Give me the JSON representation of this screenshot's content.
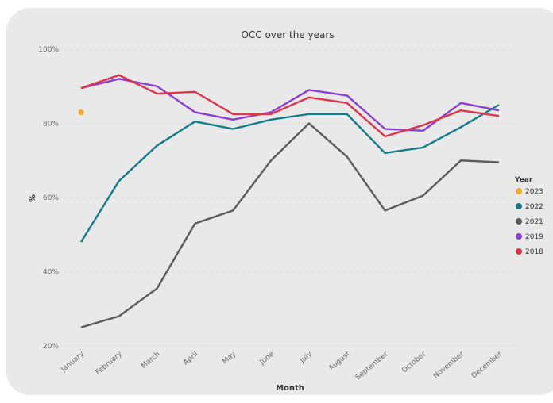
{
  "chart_data": {
    "type": "line",
    "title": "OCC over the years",
    "xlabel": "Month",
    "ylabel": "%",
    "categories": [
      "January",
      "February",
      "March",
      "April",
      "May",
      "June",
      "July",
      "August",
      "September",
      "October",
      "November",
      "December"
    ],
    "y_ticks": [
      "100%",
      "80%",
      "60%",
      "40%",
      "20%"
    ],
    "ylim": [
      20,
      100
    ],
    "grid": "horizontal dotted",
    "legend": {
      "title": "Year",
      "placement": "right"
    },
    "series": [
      {
        "name": "2023",
        "color": "#f5a623",
        "marker": "point",
        "values": [
          83,
          null,
          null,
          null,
          null,
          null,
          null,
          null,
          null,
          null,
          null,
          null
        ]
      },
      {
        "name": "2022",
        "color": "#127c8c",
        "values": [
          48,
          64.5,
          74,
          80.5,
          78.5,
          81,
          82.5,
          82.5,
          72,
          73.5,
          79,
          85
        ]
      },
      {
        "name": "2021",
        "color": "#5b5b5b",
        "values": [
          25,
          28,
          35.5,
          53,
          56.5,
          70,
          80,
          71,
          56.5,
          60.5,
          70,
          69.5
        ]
      },
      {
        "name": "2019",
        "color": "#8a3fd4",
        "values": [
          89.5,
          92,
          90,
          83,
          81,
          83,
          89,
          87.5,
          78.5,
          78,
          85.5,
          83.5
        ]
      },
      {
        "name": "2018",
        "color": "#e0344a",
        "values": [
          89.5,
          93,
          88,
          88.5,
          82.5,
          82.5,
          87,
          85.5,
          76.5,
          79.5,
          83.5,
          82
        ]
      }
    ]
  }
}
